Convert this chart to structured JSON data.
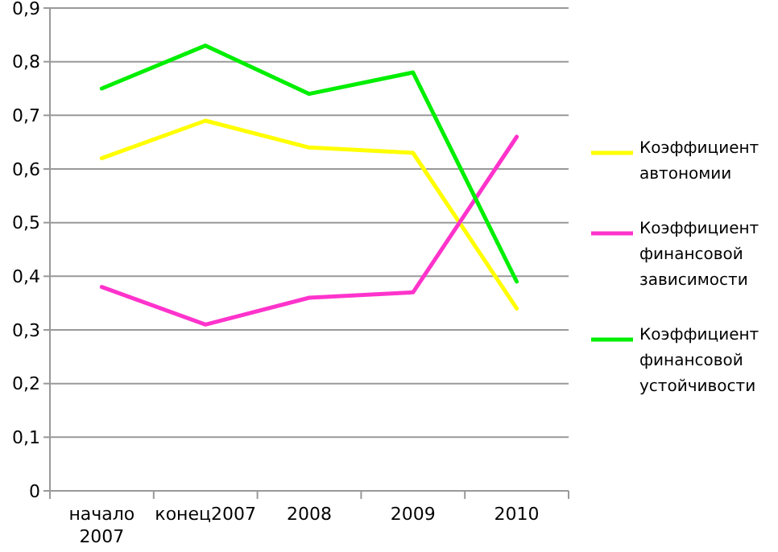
{
  "chart_data": {
    "type": "line",
    "categories": [
      "начало 2007",
      "конец2007",
      "2008",
      "2009",
      "2010"
    ],
    "series": [
      {
        "name": "Коэффициент автономии",
        "color": "#ffff00",
        "values": [
          0.62,
          0.69,
          0.64,
          0.63,
          0.34
        ]
      },
      {
        "name": "Коэффициент финансовой зависимости",
        "color": "#ff33cc",
        "values": [
          0.38,
          0.31,
          0.36,
          0.37,
          0.66
        ]
      },
      {
        "name": "Коэффициент финансовой устойчивости",
        "color": "#00ee00",
        "values": [
          0.75,
          0.83,
          0.74,
          0.78,
          0.39
        ]
      }
    ],
    "ylim": [
      0,
      0.9
    ],
    "yticks": [
      {
        "value": 0,
        "label": "0"
      },
      {
        "value": 0.1,
        "label": "0,1"
      },
      {
        "value": 0.2,
        "label": "0,2"
      },
      {
        "value": 0.3,
        "label": "0,3"
      },
      {
        "value": 0.4,
        "label": "0,4"
      },
      {
        "value": 0.5,
        "label": "0,5"
      },
      {
        "value": 0.6,
        "label": "0,6"
      },
      {
        "value": 0.7,
        "label": "0,7"
      },
      {
        "value": 0.8,
        "label": "0,8"
      },
      {
        "value": 0.9,
        "label": "0,9"
      }
    ],
    "grid": "y",
    "legend": "right",
    "marker": "none",
    "line_style": "solid"
  }
}
